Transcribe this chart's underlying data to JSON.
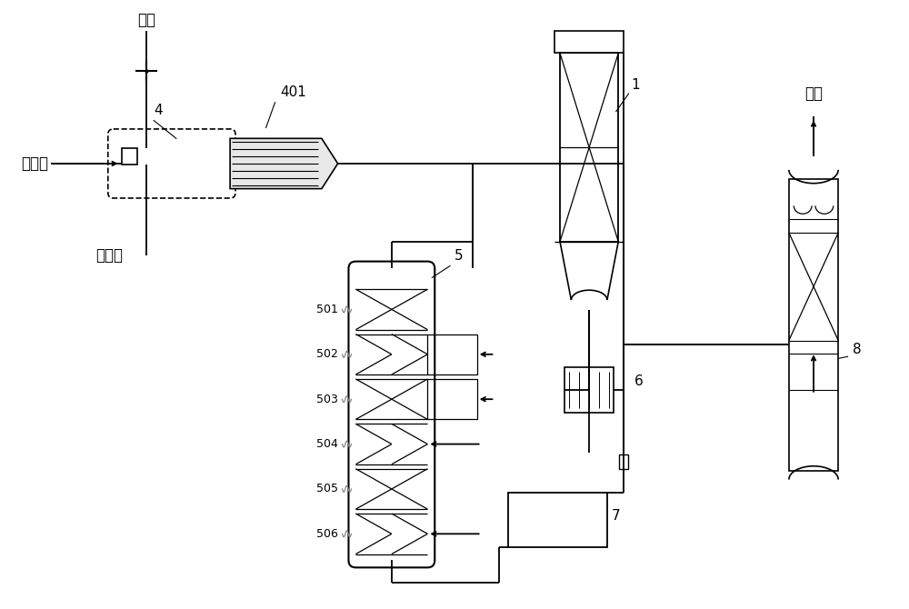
{
  "bg_color": "#ffffff",
  "line_color": "#000000",
  "labels": {
    "air": "空气",
    "acid_gas": "酸性气",
    "fuel_gas": "燃料气",
    "tail_gas": "尾气"
  }
}
